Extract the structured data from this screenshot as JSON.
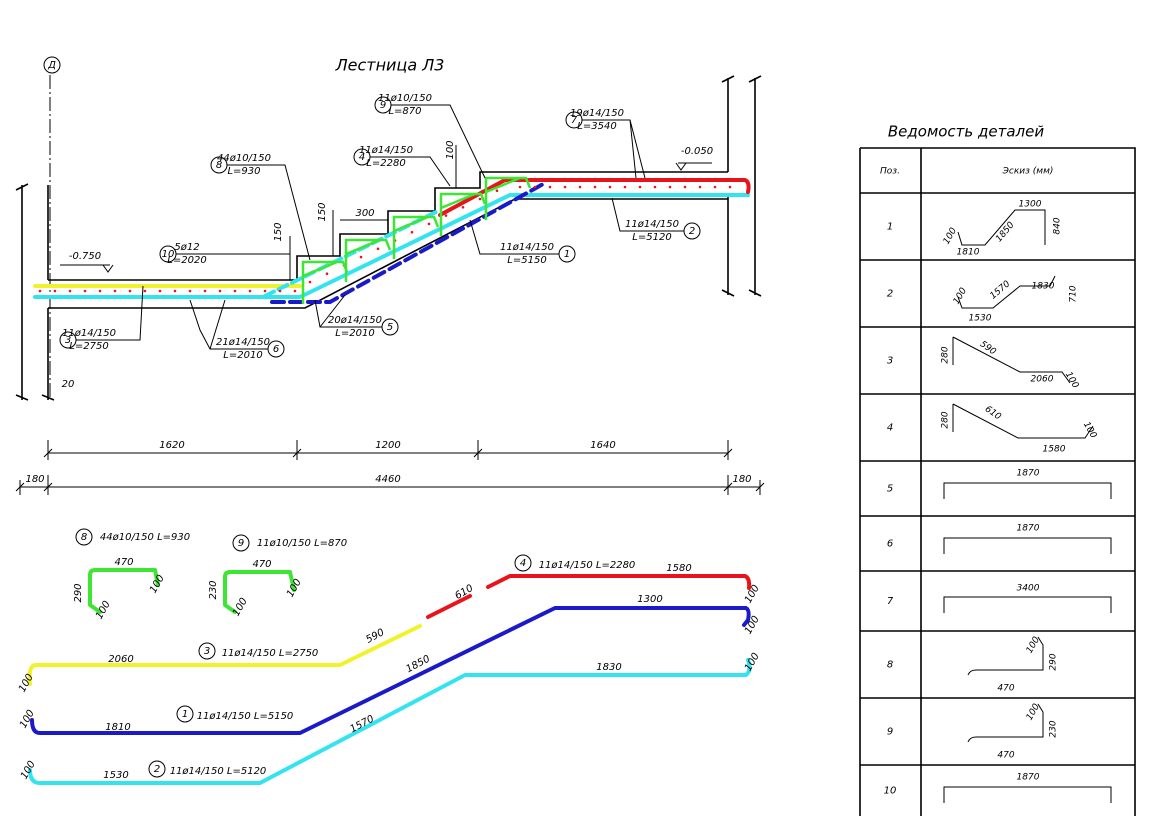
{
  "title": "Лестница Л3",
  "axis_label": "Д",
  "levels": [
    "-0.750",
    "-0.050"
  ],
  "section_callouts": [
    {
      "pos": "7",
      "lines": [
        "19ø14/150",
        "L=3540"
      ]
    },
    {
      "pos": "9",
      "lines": [
        "11ø10/150",
        "L=870"
      ]
    },
    {
      "pos": "4",
      "lines": [
        "11ø14/150",
        "L=2280"
      ]
    },
    {
      "pos": "8",
      "lines": [
        "44ø10/150",
        "L=930"
      ]
    },
    {
      "pos": "10",
      "lines": [
        "5ø12",
        "L=2020"
      ]
    },
    {
      "pos": "1",
      "lines": [
        "11ø14/150",
        "L=5150"
      ]
    },
    {
      "pos": "2",
      "lines": [
        "11ø14/150",
        "L=5120"
      ]
    },
    {
      "pos": "3",
      "lines": [
        "11ø14/150",
        "L=2750"
      ]
    },
    {
      "pos": "6",
      "lines": [
        "21ø14/150",
        "L=2010"
      ]
    },
    {
      "pos": "5",
      "lines": [
        "20ø14/150",
        "L=2010"
      ]
    }
  ],
  "section_dimensions": [
    "150",
    "150",
    "300",
    "100",
    "20"
  ],
  "plan_dimensions": [
    "1620",
    "1200",
    "1640"
  ],
  "overall_dimensions": [
    "180",
    "4460",
    "180"
  ],
  "bar_details": [
    {
      "pos": "8",
      "spec": "44ø10/150 L=930",
      "dims": [
        "470",
        "290",
        "100",
        "100"
      ]
    },
    {
      "pos": "9",
      "spec": "11ø10/150 L=870",
      "dims": [
        "470",
        "230",
        "100",
        "100"
      ]
    },
    {
      "pos": "4",
      "spec": "11ø14/150 L=2280",
      "dims": [
        "610",
        "1580",
        "100"
      ]
    },
    {
      "pos": "3",
      "spec": "11ø14/150 L=2750",
      "dims": [
        "2060",
        "590",
        "100"
      ]
    },
    {
      "pos": "1",
      "spec": "11ø14/150 L=5150",
      "dims": [
        "1850",
        "1300",
        "100",
        "1810",
        "100"
      ]
    },
    {
      "pos": "2",
      "spec": "11ø14/150 L=5120",
      "dims": [
        "1570",
        "1830",
        "100",
        "1530",
        "100"
      ]
    }
  ],
  "table": {
    "title": "Ведомость деталей",
    "headers": [
      "Поз.",
      "Эскиз (мм)"
    ],
    "rows": [
      {
        "pos": "1",
        "dims": [
          "1300",
          "1850",
          "840",
          "1810",
          "100"
        ]
      },
      {
        "pos": "2",
        "dims": [
          "1570",
          "1830",
          "710",
          "1530",
          "100"
        ]
      },
      {
        "pos": "3",
        "dims": [
          "280",
          "590",
          "2060",
          "100"
        ]
      },
      {
        "pos": "4",
        "dims": [
          "280",
          "610",
          "1580",
          "100"
        ]
      },
      {
        "pos": "5",
        "dims": [
          "1870"
        ]
      },
      {
        "pos": "6",
        "dims": [
          "1870"
        ]
      },
      {
        "pos": "7",
        "dims": [
          "3400"
        ]
      },
      {
        "pos": "8",
        "dims": [
          "100",
          "290",
          "470"
        ]
      },
      {
        "pos": "9",
        "dims": [
          "100",
          "230",
          "470"
        ]
      },
      {
        "pos": "10",
        "dims": [
          "1870"
        ]
      }
    ]
  }
}
